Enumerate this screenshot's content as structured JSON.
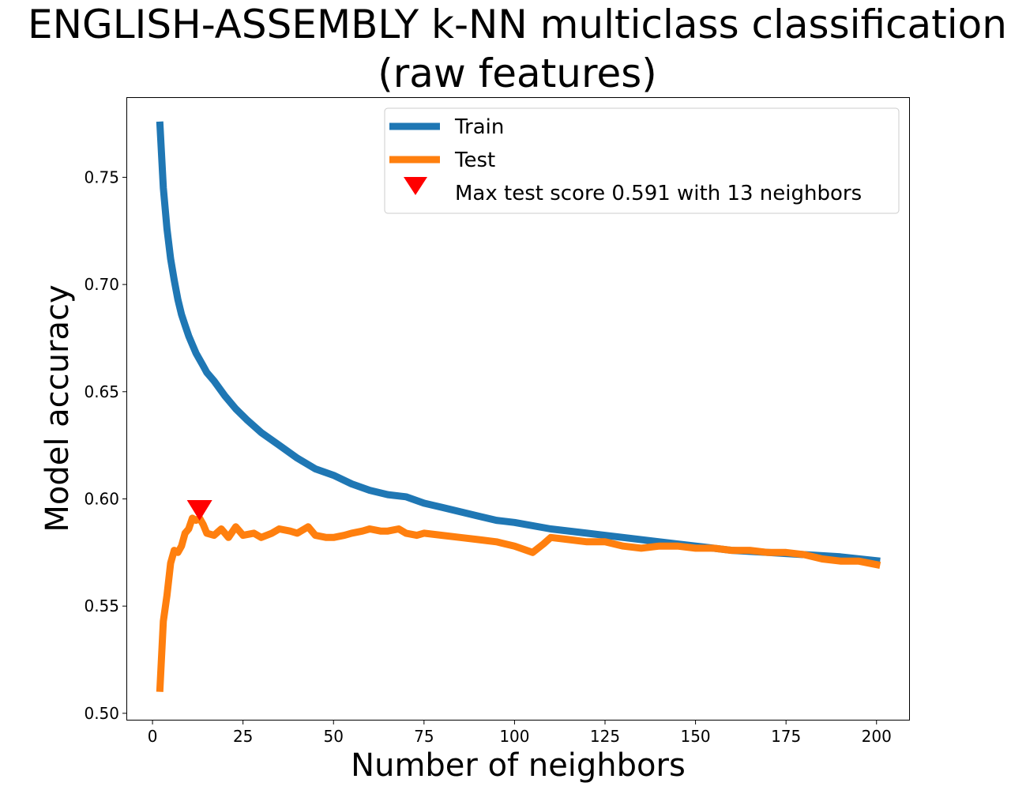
{
  "chart_data": {
    "type": "line",
    "title_line1": "ENGLISH-ASSEMBLY k-NN multiclass classification",
    "title_line2": "(raw features)",
    "xlabel": "Number of neighbors",
    "ylabel": "Model accuracy",
    "xlim": [
      -7,
      209
    ],
    "ylim": [
      0.497,
      0.787
    ],
    "xticks": [
      "0",
      "25",
      "50",
      "75",
      "100",
      "125",
      "150",
      "175",
      "200"
    ],
    "yticks": [
      "0.50",
      "0.55",
      "0.60",
      "0.65",
      "0.70",
      "0.75"
    ],
    "grid": false,
    "legend_position": "top-right",
    "series": [
      {
        "name": "Train",
        "color": "#1f77b4",
        "x": [
          2,
          3,
          4,
          5,
          6,
          7,
          8,
          9,
          10,
          11,
          12,
          13,
          14,
          15,
          17,
          20,
          23,
          26,
          30,
          35,
          40,
          45,
          50,
          55,
          60,
          65,
          70,
          75,
          80,
          85,
          90,
          95,
          100,
          110,
          120,
          130,
          140,
          150,
          160,
          170,
          180,
          190,
          201
        ],
        "values": [
          0.776,
          0.745,
          0.726,
          0.712,
          0.702,
          0.693,
          0.686,
          0.681,
          0.676,
          0.672,
          0.668,
          0.665,
          0.662,
          0.659,
          0.655,
          0.648,
          0.642,
          0.637,
          0.631,
          0.625,
          0.619,
          0.614,
          0.611,
          0.607,
          0.604,
          0.602,
          0.601,
          0.598,
          0.596,
          0.594,
          0.592,
          0.59,
          0.589,
          0.586,
          0.584,
          0.582,
          0.58,
          0.578,
          0.576,
          0.575,
          0.574,
          0.573,
          0.571
        ]
      },
      {
        "name": "Test",
        "color": "#ff7f0e",
        "x": [
          2,
          3,
          4,
          5,
          6,
          7,
          8,
          9,
          10,
          11,
          12,
          13,
          14,
          15,
          17,
          19,
          21,
          23,
          25,
          28,
          30,
          33,
          35,
          38,
          40,
          43,
          45,
          48,
          50,
          53,
          55,
          58,
          60,
          63,
          65,
          68,
          70,
          73,
          75,
          80,
          85,
          90,
          95,
          100,
          105,
          108,
          110,
          115,
          120,
          125,
          130,
          135,
          140,
          145,
          150,
          155,
          160,
          165,
          170,
          175,
          180,
          185,
          190,
          195,
          201
        ],
        "values": [
          0.51,
          0.543,
          0.555,
          0.57,
          0.576,
          0.575,
          0.578,
          0.584,
          0.586,
          0.591,
          0.59,
          0.591,
          0.588,
          0.584,
          0.583,
          0.586,
          0.582,
          0.587,
          0.583,
          0.584,
          0.582,
          0.584,
          0.586,
          0.585,
          0.584,
          0.587,
          0.583,
          0.582,
          0.582,
          0.583,
          0.584,
          0.585,
          0.586,
          0.585,
          0.585,
          0.586,
          0.584,
          0.583,
          0.584,
          0.583,
          0.582,
          0.581,
          0.58,
          0.578,
          0.575,
          0.579,
          0.582,
          0.581,
          0.58,
          0.58,
          0.578,
          0.577,
          0.578,
          0.578,
          0.577,
          0.577,
          0.576,
          0.576,
          0.575,
          0.575,
          0.574,
          0.572,
          0.571,
          0.571,
          0.569
        ]
      }
    ],
    "marker": {
      "label": "Max test score 0.591 with 13 neighbors",
      "x": 13,
      "y": 0.595,
      "color": "#ff0000"
    }
  }
}
